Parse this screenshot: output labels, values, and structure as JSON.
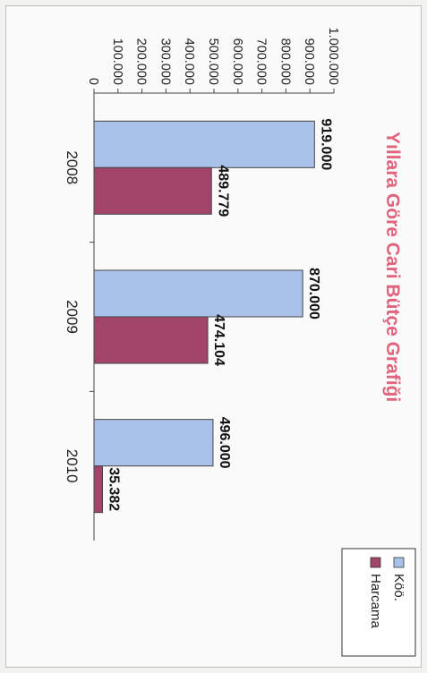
{
  "chart_data": {
    "type": "bar",
    "orientation": "vertical",
    "title": "Yıllara Göre Cari Bütçe Grafiği",
    "title_color": "#e0647e",
    "categories": [
      "2008",
      "2009",
      "2010"
    ],
    "series": [
      {
        "name": "Köö.",
        "values": [
          919000,
          870000,
          496000
        ],
        "labels": [
          "919.000",
          "870.000",
          "496.000"
        ],
        "color": "#a9c2ea"
      },
      {
        "name": "Harcama",
        "values": [
          489779,
          474104,
          35382
        ],
        "labels": [
          "489.779",
          "474.104",
          "35.382"
        ],
        "color": "#a3446b"
      }
    ],
    "ylim": [
      0,
      1000000
    ],
    "yticks": [
      "0",
      "100.000",
      "200.000",
      "300.000",
      "400.000",
      "500.000",
      "600.000",
      "700.000",
      "800.000",
      "900.000",
      "1.000.000"
    ],
    "grid": false,
    "legend_position": "top-right",
    "xlabel": "",
    "ylabel": ""
  }
}
